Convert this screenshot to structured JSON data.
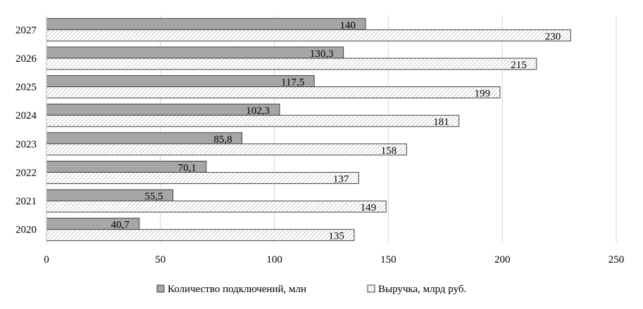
{
  "chart_data": {
    "type": "bar",
    "orientation": "horizontal",
    "categories": [
      "2020",
      "2021",
      "2022",
      "2023",
      "2024",
      "2025",
      "2026",
      "2027"
    ],
    "series": [
      {
        "name": "Количество подключений, млн",
        "values": [
          40.7,
          55.5,
          70.1,
          85.8,
          102.3,
          117.5,
          130.3,
          140
        ],
        "labels": [
          "40,7",
          "55,5",
          "70,1",
          "85,8",
          "102,3",
          "117,5",
          "130,3",
          "140"
        ],
        "color": "#a6a6a6",
        "pattern": "solid"
      },
      {
        "name": "Выручка, млрд руб.",
        "values": [
          135,
          149,
          137,
          158,
          181,
          199,
          215,
          230
        ],
        "labels": [
          "135",
          "149",
          "137",
          "158",
          "181",
          "199",
          "215",
          "230"
        ],
        "color": "#ffffff",
        "pattern": "diagonal-hatch"
      }
    ],
    "xticks": [
      "0",
      "50",
      "100",
      "150",
      "200",
      "250"
    ],
    "xlim": [
      0,
      250
    ],
    "grid": "vertical",
    "legend": "bottom"
  }
}
